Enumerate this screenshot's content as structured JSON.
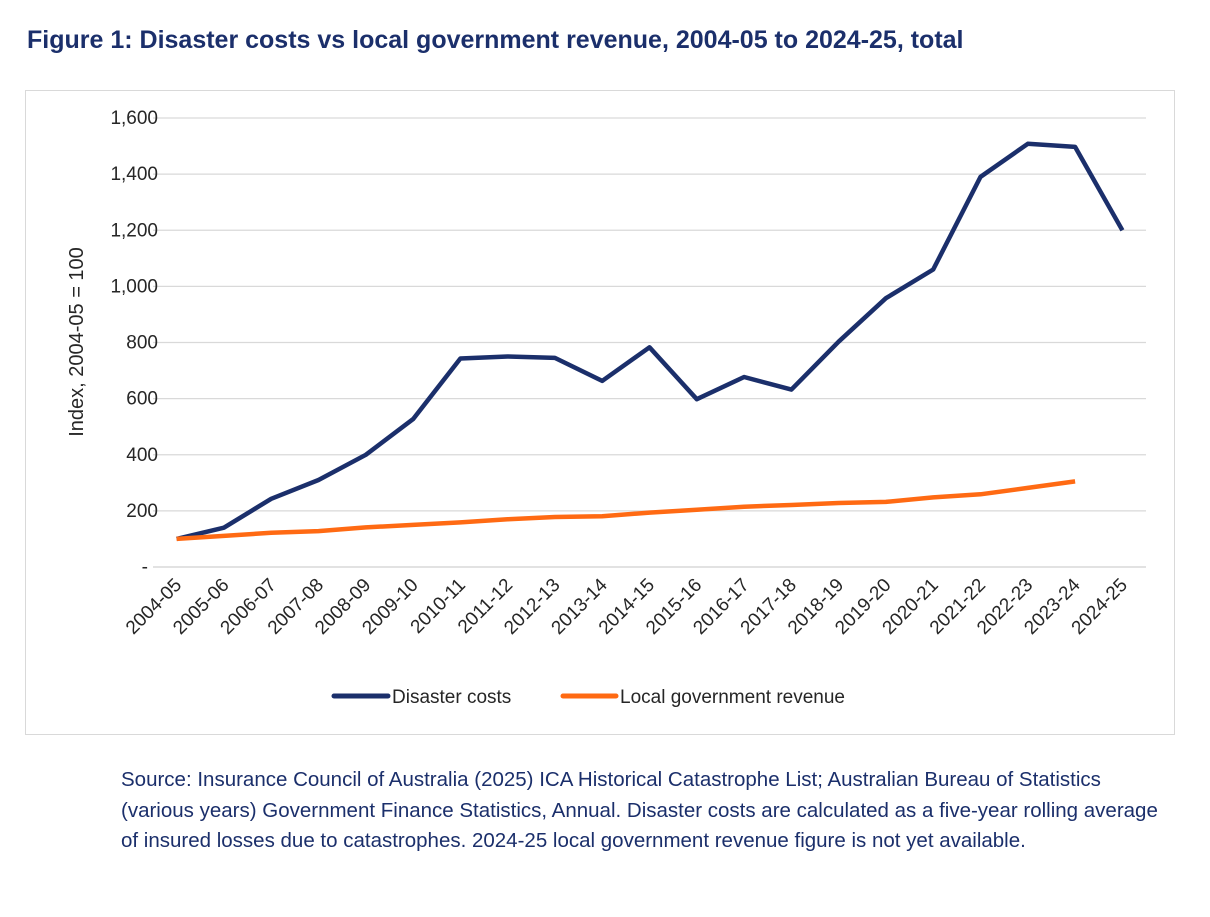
{
  "figure": {
    "title": "Figure 1: Disaster costs vs local government revenue, 2004-05 to 2024-25, total",
    "source": "Source: Insurance Council of Australia (2025) ICA Historical Catastrophe List; Australian Bureau of Statistics (various years) Government Finance Statistics, Annual. Disaster costs are calculated as a five-year rolling average of insured losses due to catastrophes. 2024-25 local government revenue figure is not yet available."
  },
  "chart_data": {
    "type": "line",
    "title": "",
    "xlabel": "",
    "ylabel": "Index, 2004-05 = 100",
    "ylim": [
      0,
      1600
    ],
    "y_ticks": [
      0,
      200,
      400,
      600,
      800,
      1000,
      1200,
      1400,
      1600
    ],
    "y_tick_labels": [
      "-",
      "200",
      "400",
      "600",
      "800",
      "1,000",
      "1,200",
      "1,400",
      "1,600"
    ],
    "grid": "horizontal",
    "legend_position": "bottom",
    "categories": [
      "2004-05",
      "2005-06",
      "2006-07",
      "2007-08",
      "2008-09",
      "2009-10",
      "2010-11",
      "2011-12",
      "2012-13",
      "2013-14",
      "2014-15",
      "2015-16",
      "2016-17",
      "2017-18",
      "2018-19",
      "2019-20",
      "2020-21",
      "2021-22",
      "2022-23",
      "2023-24",
      "2024-25"
    ],
    "series": [
      {
        "name": "Disaster costs",
        "color": "#1b2f6b",
        "values": [
          100,
          140,
          243,
          310,
          400,
          527,
          743,
          750,
          745,
          663,
          783,
          598,
          677,
          632,
          803,
          958,
          1060,
          1390,
          1508,
          1497,
          1200
        ]
      },
      {
        "name": "Local government revenue",
        "color": "#ff6a13",
        "values": [
          100,
          111,
          122,
          128,
          141,
          150,
          159,
          170,
          178,
          181,
          194,
          204,
          215,
          221,
          228,
          232,
          248,
          259,
          282,
          305,
          null
        ]
      }
    ]
  }
}
